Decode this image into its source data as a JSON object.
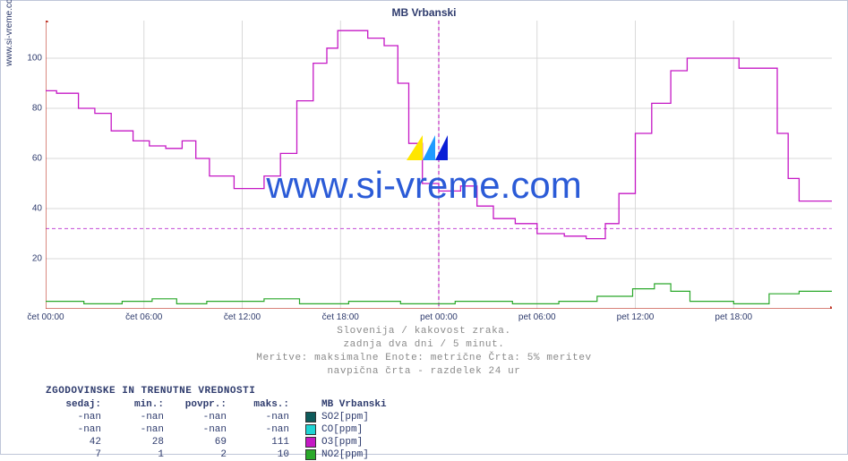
{
  "title": "MB Vrbanski",
  "ylabel": "www.si-vreme.com",
  "watermark_text": "www.si-vreme.com",
  "subtitles": [
    "Slovenija / kakovost zraka.",
    "zadnja dva dni / 5 minut.",
    "Meritve: maksimalne  Enote: metrične  Črta: 5% meritev",
    "navpična črta - razdelek 24 ur"
  ],
  "chart": {
    "type": "line-step",
    "background_color": "#ffffff",
    "grid_color": "#d9d9d9",
    "axis_color": "#c0392b",
    "divider_color": "#b300b3",
    "divider_x": 288,
    "dashed_hline": {
      "y": 32,
      "color": "#c24bd6"
    },
    "label_fontsize": 10,
    "ylim": [
      0,
      115
    ],
    "yticks": [
      20,
      40,
      60,
      80,
      100
    ],
    "xticks": [
      {
        "pos": 0,
        "label": "čet 00:00"
      },
      {
        "pos": 72,
        "label": "čet 06:00"
      },
      {
        "pos": 144,
        "label": "čet 12:00"
      },
      {
        "pos": 216,
        "label": "čet 18:00"
      },
      {
        "pos": 288,
        "label": "pet 00:00"
      },
      {
        "pos": 360,
        "label": "pet 06:00"
      },
      {
        "pos": 432,
        "label": "pet 12:00"
      },
      {
        "pos": 504,
        "label": "pet 18:00"
      }
    ],
    "xlim": [
      0,
      576
    ],
    "series": [
      {
        "name": "O3",
        "color": "#c518c5",
        "line_width": 1.3,
        "points": [
          [
            0,
            87
          ],
          [
            8,
            87
          ],
          [
            8,
            86
          ],
          [
            24,
            86
          ],
          [
            24,
            80
          ],
          [
            36,
            80
          ],
          [
            36,
            78
          ],
          [
            48,
            78
          ],
          [
            48,
            71
          ],
          [
            64,
            71
          ],
          [
            64,
            67
          ],
          [
            76,
            67
          ],
          [
            76,
            65
          ],
          [
            88,
            65
          ],
          [
            88,
            64
          ],
          [
            100,
            64
          ],
          [
            100,
            67
          ],
          [
            110,
            67
          ],
          [
            110,
            60
          ],
          [
            120,
            60
          ],
          [
            120,
            53
          ],
          [
            138,
            53
          ],
          [
            138,
            48
          ],
          [
            160,
            48
          ],
          [
            160,
            53
          ],
          [
            172,
            53
          ],
          [
            172,
            62
          ],
          [
            184,
            62
          ],
          [
            184,
            83
          ],
          [
            196,
            83
          ],
          [
            196,
            98
          ],
          [
            206,
            98
          ],
          [
            206,
            104
          ],
          [
            214,
            104
          ],
          [
            214,
            111
          ],
          [
            236,
            111
          ],
          [
            236,
            108
          ],
          [
            248,
            108
          ],
          [
            248,
            105
          ],
          [
            258,
            105
          ],
          [
            258,
            90
          ],
          [
            266,
            90
          ],
          [
            266,
            66
          ],
          [
            276,
            66
          ],
          [
            276,
            50
          ],
          [
            288,
            50
          ],
          [
            288,
            47
          ],
          [
            304,
            47
          ],
          [
            304,
            49
          ],
          [
            316,
            49
          ],
          [
            316,
            41
          ],
          [
            328,
            41
          ],
          [
            328,
            36
          ],
          [
            344,
            36
          ],
          [
            344,
            34
          ],
          [
            360,
            34
          ],
          [
            360,
            30
          ],
          [
            380,
            30
          ],
          [
            380,
            29
          ],
          [
            396,
            29
          ],
          [
            396,
            28
          ],
          [
            410,
            28
          ],
          [
            410,
            34
          ],
          [
            420,
            34
          ],
          [
            420,
            46
          ],
          [
            432,
            46
          ],
          [
            432,
            70
          ],
          [
            444,
            70
          ],
          [
            444,
            82
          ],
          [
            458,
            82
          ],
          [
            458,
            95
          ],
          [
            470,
            95
          ],
          [
            470,
            100
          ],
          [
            508,
            100
          ],
          [
            508,
            96
          ],
          [
            536,
            96
          ],
          [
            536,
            70
          ],
          [
            544,
            70
          ],
          [
            544,
            52
          ],
          [
            552,
            52
          ],
          [
            552,
            43
          ],
          [
            576,
            43
          ]
        ]
      },
      {
        "name": "NO2",
        "color": "#2aa82a",
        "line_width": 1.2,
        "points": [
          [
            0,
            3
          ],
          [
            28,
            3
          ],
          [
            28,
            2
          ],
          [
            56,
            2
          ],
          [
            56,
            3
          ],
          [
            78,
            3
          ],
          [
            78,
            4
          ],
          [
            96,
            4
          ],
          [
            96,
            2
          ],
          [
            118,
            2
          ],
          [
            118,
            3
          ],
          [
            160,
            3
          ],
          [
            160,
            4
          ],
          [
            186,
            4
          ],
          [
            186,
            2
          ],
          [
            222,
            2
          ],
          [
            222,
            3
          ],
          [
            260,
            3
          ],
          [
            260,
            2
          ],
          [
            300,
            2
          ],
          [
            300,
            3
          ],
          [
            342,
            3
          ],
          [
            342,
            2
          ],
          [
            376,
            2
          ],
          [
            376,
            3
          ],
          [
            404,
            3
          ],
          [
            404,
            5
          ],
          [
            430,
            5
          ],
          [
            430,
            8
          ],
          [
            446,
            8
          ],
          [
            446,
            10
          ],
          [
            458,
            10
          ],
          [
            458,
            7
          ],
          [
            472,
            7
          ],
          [
            472,
            3
          ],
          [
            504,
            3
          ],
          [
            504,
            2
          ],
          [
            530,
            2
          ],
          [
            530,
            6
          ],
          [
            552,
            6
          ],
          [
            552,
            7
          ],
          [
            576,
            7
          ]
        ]
      }
    ]
  },
  "table": {
    "title": "ZGODOVINSKE IN TRENUTNE VREDNOSTI",
    "columns": [
      "sedaj:",
      "min.:",
      "povpr.:",
      "maks.:"
    ],
    "station": "MB Vrbanski",
    "rows": [
      {
        "values": [
          "-nan",
          "-nan",
          "-nan",
          "-nan"
        ],
        "label": "SO2[ppm]",
        "swatch": "#0e5a5a"
      },
      {
        "values": [
          "-nan",
          "-nan",
          "-nan",
          "-nan"
        ],
        "label": "CO[ppm]",
        "swatch": "#1fd4d4"
      },
      {
        "values": [
          "42",
          "28",
          "69",
          "111"
        ],
        "label": "O3[ppm]",
        "swatch": "#c518c5"
      },
      {
        "values": [
          "7",
          "1",
          "2",
          "10"
        ],
        "label": "NO2[ppm]",
        "swatch": "#2aa82a"
      }
    ]
  },
  "wm_icon": {
    "tri1": "#ffe600",
    "tri2": "#1f9bff",
    "tri3": "#0a1fd6"
  }
}
